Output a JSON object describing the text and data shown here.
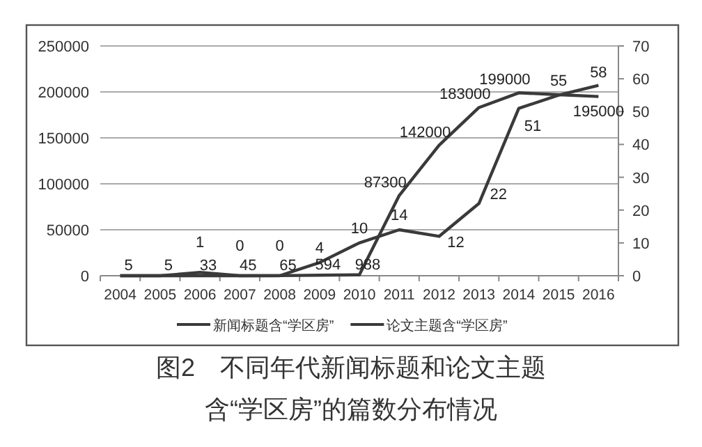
{
  "chart_data": {
    "type": "line",
    "title": "图2　不同年代新闻标题和论文主题",
    "subtitle": "含“学区房”的篇数分布情况",
    "categories": [
      "2004",
      "2005",
      "2006",
      "2007",
      "2008",
      "2009",
      "2010",
      "2011",
      "2012",
      "2013",
      "2014",
      "2015",
      "2016"
    ],
    "series": [
      {
        "name": "新闻标题含“学区房”",
        "color": "#3a3a3a",
        "values": [
          5,
          5,
          33,
          45,
          65,
          594,
          988,
          87300,
          142000,
          183000,
          199000,
          197000,
          195000
        ],
        "value_labels": [
          "5",
          "5",
          "33",
          "45",
          "65",
          "594",
          "988",
          "87300",
          "142000",
          "183000",
          "199000",
          null,
          "195000"
        ]
      },
      {
        "name": "论文主题含“学区房”",
        "color": "#3a3a3a",
        "axis": "y2",
        "values": [
          0,
          0,
          1,
          0,
          0,
          4,
          10,
          14,
          12,
          22,
          51,
          55,
          58
        ],
        "value_labels": [
          null,
          null,
          "1",
          "0",
          "0",
          "4",
          "10",
          "14",
          "12",
          "22",
          "51",
          "55",
          "58"
        ]
      }
    ],
    "ylim": [
      0,
      250000
    ],
    "yticks": [
      0,
      50000,
      100000,
      150000,
      200000,
      250000
    ],
    "y2lim": [
      0,
      70
    ],
    "y2ticks": [
      0,
      10,
      20,
      30,
      40,
      50,
      60,
      70
    ],
    "grid": "y",
    "legend": "bottom",
    "marker": "none",
    "line_style": "solid"
  }
}
